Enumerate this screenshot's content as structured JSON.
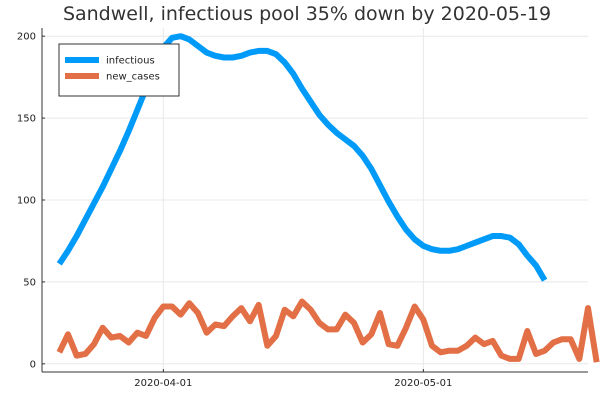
{
  "chart_data": {
    "type": "line",
    "title": "Sandwell, infectious pool 35% down by 2020-05-19",
    "xlabel": "",
    "ylabel": "",
    "x_start": "2020-03-20",
    "x_end": "2020-05-19",
    "xlim": [
      "2020-03-18",
      "2020-05-20"
    ],
    "ylim": [
      -5,
      205
    ],
    "yticks": [
      0,
      50,
      100,
      150,
      200
    ],
    "xticks": [
      "2020-04-01",
      "2020-05-01"
    ],
    "grid": true,
    "legend_position": "top-left",
    "series": [
      {
        "name": "infectious",
        "color": "#009af9",
        "values": [
          61,
          69,
          78,
          88,
          98,
          108,
          119,
          130,
          142,
          155,
          168,
          182,
          193,
          199,
          200,
          198,
          194,
          190,
          188,
          187,
          187,
          188,
          190,
          191,
          191,
          189,
          184,
          177,
          168,
          160,
          152,
          146,
          141,
          137,
          133,
          127,
          119,
          109,
          99,
          90,
          82,
          76,
          72,
          70,
          69,
          69,
          70,
          72,
          74,
          76,
          78,
          78,
          77,
          73,
          66,
          60,
          51
        ]
      },
      {
        "name": "new_cases",
        "color": "#e26f46",
        "values": [
          7,
          18,
          5,
          6,
          12,
          22,
          16,
          17,
          13,
          19,
          17,
          28,
          35,
          35,
          30,
          37,
          31,
          19,
          24,
          23,
          29,
          34,
          26,
          36,
          11,
          17,
          33,
          29,
          38,
          33,
          25,
          21,
          21,
          30,
          25,
          13,
          18,
          31,
          12,
          11,
          22,
          35,
          27,
          11,
          7,
          8,
          8,
          11,
          16,
          12,
          14,
          5,
          3,
          3,
          20,
          6,
          8,
          13,
          15,
          15,
          3,
          34,
          1
        ]
      }
    ]
  }
}
